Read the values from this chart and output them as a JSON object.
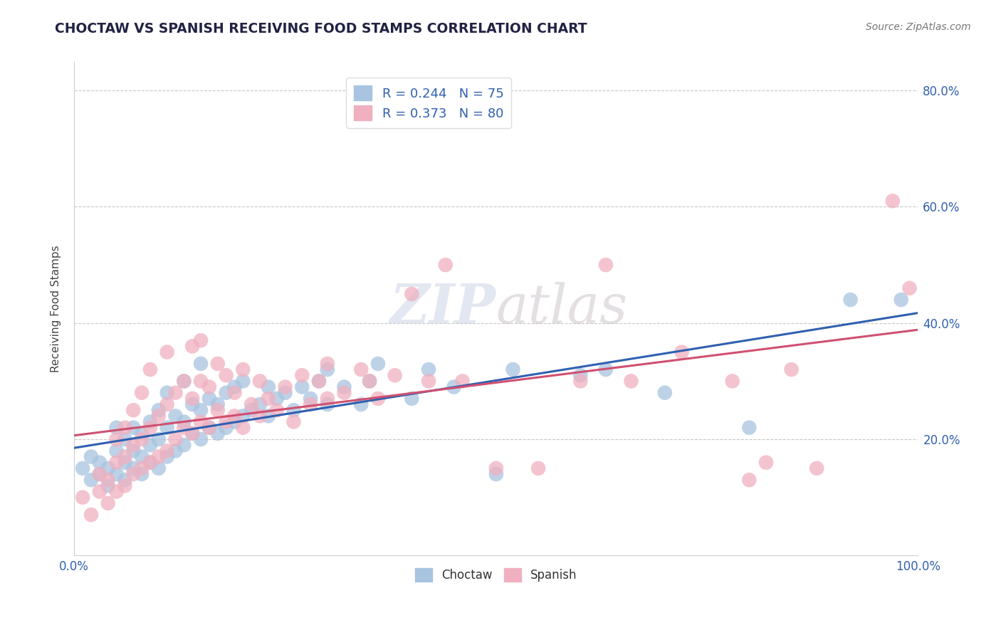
{
  "title": "CHOCTAW VS SPANISH RECEIVING FOOD STAMPS CORRELATION CHART",
  "source_text": "Source: ZipAtlas.com",
  "ylabel": "Receiving Food Stamps",
  "xlim": [
    0.0,
    1.0
  ],
  "ylim": [
    0.0,
    0.85
  ],
  "xtick_positions": [
    0.0,
    1.0
  ],
  "xtick_labels": [
    "0.0%",
    "100.0%"
  ],
  "ytick_positions": [
    0.2,
    0.4,
    0.6,
    0.8
  ],
  "ytick_labels": [
    "20.0%",
    "40.0%",
    "60.0%",
    "80.0%"
  ],
  "choctaw_legend": "Choctaw",
  "spanish_legend": "Spanish",
  "choctaw_color": "#a8c4e0",
  "spanish_color": "#f0b0c0",
  "choctaw_line_color": "#3060b0",
  "spanish_line_color": "#d05070",
  "R_choctaw": 0.244,
  "N_choctaw": 75,
  "R_spanish": 0.373,
  "N_spanish": 80,
  "grid_color": "#c8c8c8",
  "background_color": "#ffffff",
  "choctaw_scatter": [
    [
      0.01,
      0.15
    ],
    [
      0.02,
      0.13
    ],
    [
      0.02,
      0.17
    ],
    [
      0.03,
      0.14
    ],
    [
      0.03,
      0.16
    ],
    [
      0.04,
      0.12
    ],
    [
      0.04,
      0.15
    ],
    [
      0.05,
      0.14
    ],
    [
      0.05,
      0.18
    ],
    [
      0.05,
      0.22
    ],
    [
      0.06,
      0.13
    ],
    [
      0.06,
      0.16
    ],
    [
      0.06,
      0.2
    ],
    [
      0.07,
      0.15
    ],
    [
      0.07,
      0.18
    ],
    [
      0.07,
      0.22
    ],
    [
      0.08,
      0.14
    ],
    [
      0.08,
      0.17
    ],
    [
      0.08,
      0.21
    ],
    [
      0.09,
      0.16
    ],
    [
      0.09,
      0.19
    ],
    [
      0.09,
      0.23
    ],
    [
      0.1,
      0.15
    ],
    [
      0.1,
      0.2
    ],
    [
      0.1,
      0.25
    ],
    [
      0.11,
      0.17
    ],
    [
      0.11,
      0.22
    ],
    [
      0.11,
      0.28
    ],
    [
      0.12,
      0.18
    ],
    [
      0.12,
      0.24
    ],
    [
      0.13,
      0.19
    ],
    [
      0.13,
      0.23
    ],
    [
      0.13,
      0.3
    ],
    [
      0.14,
      0.21
    ],
    [
      0.14,
      0.26
    ],
    [
      0.15,
      0.2
    ],
    [
      0.15,
      0.25
    ],
    [
      0.15,
      0.33
    ],
    [
      0.16,
      0.22
    ],
    [
      0.16,
      0.27
    ],
    [
      0.17,
      0.21
    ],
    [
      0.17,
      0.26
    ],
    [
      0.18,
      0.22
    ],
    [
      0.18,
      0.28
    ],
    [
      0.19,
      0.23
    ],
    [
      0.19,
      0.29
    ],
    [
      0.2,
      0.24
    ],
    [
      0.2,
      0.3
    ],
    [
      0.21,
      0.25
    ],
    [
      0.22,
      0.26
    ],
    [
      0.23,
      0.24
    ],
    [
      0.23,
      0.29
    ],
    [
      0.24,
      0.27
    ],
    [
      0.25,
      0.28
    ],
    [
      0.26,
      0.25
    ],
    [
      0.27,
      0.29
    ],
    [
      0.28,
      0.27
    ],
    [
      0.29,
      0.3
    ],
    [
      0.3,
      0.26
    ],
    [
      0.3,
      0.32
    ],
    [
      0.32,
      0.29
    ],
    [
      0.34,
      0.26
    ],
    [
      0.35,
      0.3
    ],
    [
      0.36,
      0.33
    ],
    [
      0.4,
      0.27
    ],
    [
      0.42,
      0.32
    ],
    [
      0.45,
      0.29
    ],
    [
      0.5,
      0.14
    ],
    [
      0.52,
      0.32
    ],
    [
      0.6,
      0.31
    ],
    [
      0.63,
      0.32
    ],
    [
      0.7,
      0.28
    ],
    [
      0.8,
      0.22
    ],
    [
      0.92,
      0.44
    ],
    [
      0.98,
      0.44
    ]
  ],
  "spanish_scatter": [
    [
      0.01,
      0.1
    ],
    [
      0.02,
      0.07
    ],
    [
      0.03,
      0.11
    ],
    [
      0.03,
      0.14
    ],
    [
      0.04,
      0.09
    ],
    [
      0.04,
      0.13
    ],
    [
      0.05,
      0.11
    ],
    [
      0.05,
      0.16
    ],
    [
      0.05,
      0.2
    ],
    [
      0.06,
      0.12
    ],
    [
      0.06,
      0.17
    ],
    [
      0.06,
      0.22
    ],
    [
      0.07,
      0.14
    ],
    [
      0.07,
      0.19
    ],
    [
      0.07,
      0.25
    ],
    [
      0.08,
      0.15
    ],
    [
      0.08,
      0.2
    ],
    [
      0.08,
      0.28
    ],
    [
      0.09,
      0.16
    ],
    [
      0.09,
      0.22
    ],
    [
      0.09,
      0.32
    ],
    [
      0.1,
      0.17
    ],
    [
      0.1,
      0.24
    ],
    [
      0.11,
      0.18
    ],
    [
      0.11,
      0.26
    ],
    [
      0.11,
      0.35
    ],
    [
      0.12,
      0.2
    ],
    [
      0.12,
      0.28
    ],
    [
      0.13,
      0.22
    ],
    [
      0.13,
      0.3
    ],
    [
      0.14,
      0.21
    ],
    [
      0.14,
      0.27
    ],
    [
      0.14,
      0.36
    ],
    [
      0.15,
      0.23
    ],
    [
      0.15,
      0.3
    ],
    [
      0.15,
      0.37
    ],
    [
      0.16,
      0.22
    ],
    [
      0.16,
      0.29
    ],
    [
      0.17,
      0.25
    ],
    [
      0.17,
      0.33
    ],
    [
      0.18,
      0.23
    ],
    [
      0.18,
      0.31
    ],
    [
      0.19,
      0.24
    ],
    [
      0.19,
      0.28
    ],
    [
      0.2,
      0.22
    ],
    [
      0.2,
      0.32
    ],
    [
      0.21,
      0.26
    ],
    [
      0.22,
      0.24
    ],
    [
      0.22,
      0.3
    ],
    [
      0.23,
      0.27
    ],
    [
      0.24,
      0.25
    ],
    [
      0.25,
      0.29
    ],
    [
      0.26,
      0.23
    ],
    [
      0.27,
      0.31
    ],
    [
      0.28,
      0.26
    ],
    [
      0.29,
      0.3
    ],
    [
      0.3,
      0.27
    ],
    [
      0.3,
      0.33
    ],
    [
      0.32,
      0.28
    ],
    [
      0.34,
      0.32
    ],
    [
      0.35,
      0.3
    ],
    [
      0.36,
      0.27
    ],
    [
      0.38,
      0.31
    ],
    [
      0.4,
      0.45
    ],
    [
      0.42,
      0.3
    ],
    [
      0.44,
      0.5
    ],
    [
      0.46,
      0.3
    ],
    [
      0.5,
      0.15
    ],
    [
      0.55,
      0.15
    ],
    [
      0.6,
      0.3
    ],
    [
      0.63,
      0.5
    ],
    [
      0.66,
      0.3
    ],
    [
      0.72,
      0.35
    ],
    [
      0.78,
      0.3
    ],
    [
      0.8,
      0.13
    ],
    [
      0.82,
      0.16
    ],
    [
      0.85,
      0.32
    ],
    [
      0.88,
      0.15
    ],
    [
      0.97,
      0.61
    ],
    [
      0.99,
      0.46
    ]
  ]
}
